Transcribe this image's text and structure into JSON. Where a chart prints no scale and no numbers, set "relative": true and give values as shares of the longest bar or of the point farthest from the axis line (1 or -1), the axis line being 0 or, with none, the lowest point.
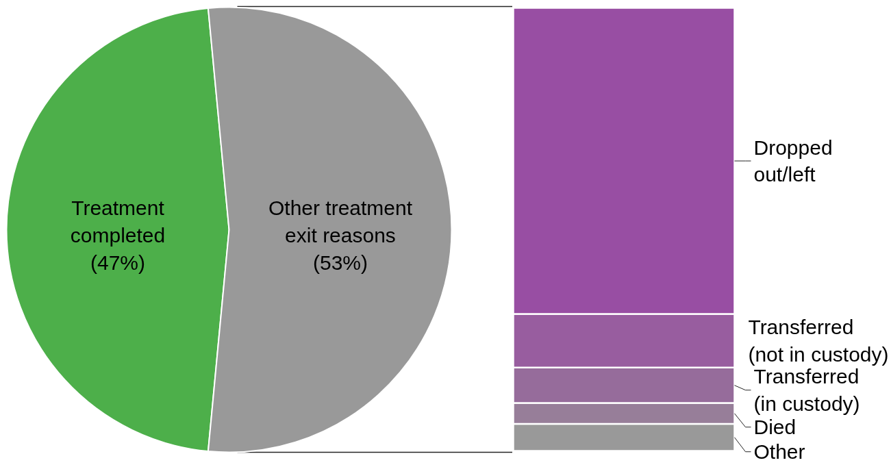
{
  "chart_data": [
    {
      "type": "pie",
      "categories": [
        "Treatment completed",
        "Other treatment exit reasons"
      ],
      "values": [
        47,
        53
      ],
      "colors": [
        "#4daf4a",
        "#999999"
      ],
      "value_labels": [
        "(47%)",
        "(53%)"
      ]
    },
    {
      "type": "bar",
      "stacked": true,
      "relative": true,
      "categories": [
        null
      ],
      "series": [
        {
          "name": "Other",
          "color": "#999999",
          "values": [
            0.061
          ]
        },
        {
          "name": "Died",
          "color": "#977e99",
          "values": [
            0.047
          ]
        },
        {
          "name": "Transferred (in custody)",
          "color": "#966c9b",
          "values": [
            0.08
          ]
        },
        {
          "name": "Transferred (not in custody)",
          "color": "#985d9f",
          "values": [
            0.121
          ]
        },
        {
          "name": "Dropped out/left",
          "color": "#984ea3",
          "values": [
            0.691
          ]
        }
      ]
    }
  ]
}
